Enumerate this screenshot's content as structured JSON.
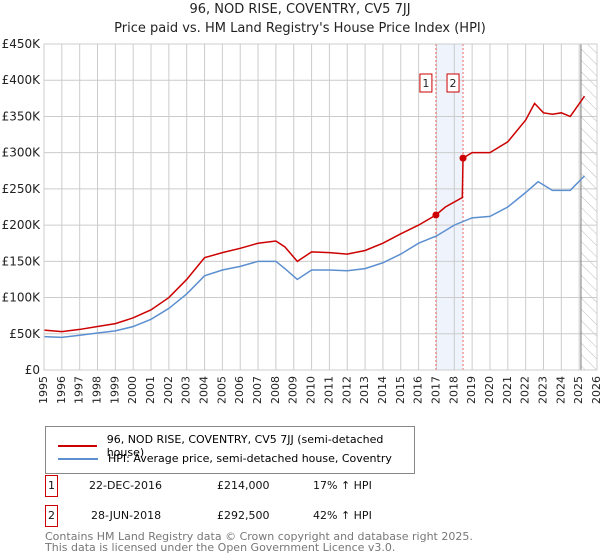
{
  "chart_data": {
    "type": "line",
    "title": "96, NOD RISE, COVENTRY, CV5 7JJ",
    "subtitle": "Price paid vs. HM Land Registry's House Price Index (HPI)",
    "xlim": [
      1995,
      2026
    ],
    "ylim": [
      0,
      450000
    ],
    "yticks": [
      0,
      50000,
      100000,
      150000,
      200000,
      250000,
      300000,
      350000,
      400000,
      450000
    ],
    "ytick_labels": [
      "£0",
      "£50K",
      "£100K",
      "£150K",
      "£200K",
      "£250K",
      "£300K",
      "£350K",
      "£400K",
      "£450K"
    ],
    "xticks": [
      1995,
      1996,
      1997,
      1998,
      1999,
      2000,
      2001,
      2002,
      2003,
      2004,
      2005,
      2006,
      2007,
      2008,
      2009,
      2010,
      2011,
      2012,
      2013,
      2014,
      2015,
      2016,
      2017,
      2018,
      2019,
      2020,
      2021,
      2022,
      2023,
      2024,
      2025,
      2026
    ],
    "grid": true,
    "series": [
      {
        "name": "96, NOD RISE, COVENTRY, CV5 7JJ (semi-detached house)",
        "color": "#cc0000",
        "x": [
          1995,
          1996,
          1997,
          1998,
          1999,
          2000,
          2001,
          2002,
          2003,
          2004,
          2005,
          2006,
          2007,
          2008,
          2008.5,
          2009.2,
          2010,
          2011,
          2012,
          2013,
          2014,
          2015,
          2016,
          2016.97,
          2017.5,
          2018.45,
          2018.49,
          2019,
          2020,
          2021,
          2022,
          2022.5,
          2023,
          2023.5,
          2024,
          2024.5,
          2025.3
        ],
        "y": [
          55000,
          53000,
          56000,
          60000,
          64000,
          72000,
          83000,
          100000,
          125000,
          155000,
          162000,
          168000,
          175000,
          178000,
          170000,
          150000,
          163000,
          162000,
          160000,
          165000,
          175000,
          188000,
          200000,
          214000,
          225000,
          238000,
          292500,
          300000,
          300000,
          315000,
          345000,
          368000,
          355000,
          353000,
          355000,
          350000,
          378000
        ]
      },
      {
        "name": "HPI: Average price, semi-detached house, Coventry",
        "color": "#5b8fd0",
        "x": [
          1995,
          1996,
          1997,
          1998,
          1999,
          2000,
          2001,
          2002,
          2003,
          2004,
          2005,
          2006,
          2007,
          2008,
          2008.5,
          2009.2,
          2010,
          2011,
          2012,
          2013,
          2014,
          2015,
          2016,
          2017,
          2018,
          2019,
          2020,
          2021,
          2022,
          2022.7,
          2023.5,
          2024.5,
          2025.3
        ],
        "y": [
          46000,
          45000,
          48000,
          51000,
          54000,
          60000,
          70000,
          85000,
          105000,
          130000,
          138000,
          143000,
          150000,
          150000,
          140000,
          125000,
          138000,
          138000,
          137000,
          140000,
          148000,
          160000,
          175000,
          185000,
          200000,
          210000,
          212000,
          225000,
          245000,
          260000,
          248000,
          248000,
          268000
        ]
      }
    ],
    "annotations": [
      {
        "label": "1",
        "x": 2016.97,
        "y": 214000
      },
      {
        "label": "2",
        "x": 2018.49,
        "y": 292500
      }
    ],
    "forecast_start": 2025.1
  },
  "legend": [
    "96, NOD RISE, COVENTRY, CV5 7JJ (semi-detached house)",
    "HPI: Average price, semi-detached house, Coventry"
  ],
  "sales": [
    {
      "num": "1",
      "date": "22-DEC-2016",
      "price": "£214,000",
      "hpi": "17% ↑ HPI"
    },
    {
      "num": "2",
      "date": "28-JUN-2018",
      "price": "£292,500",
      "hpi": "42% ↑ HPI"
    }
  ],
  "footer": [
    "Contains HM Land Registry data © Crown copyright and database right 2025.",
    "This data is licensed under the Open Government Licence v3.0."
  ]
}
